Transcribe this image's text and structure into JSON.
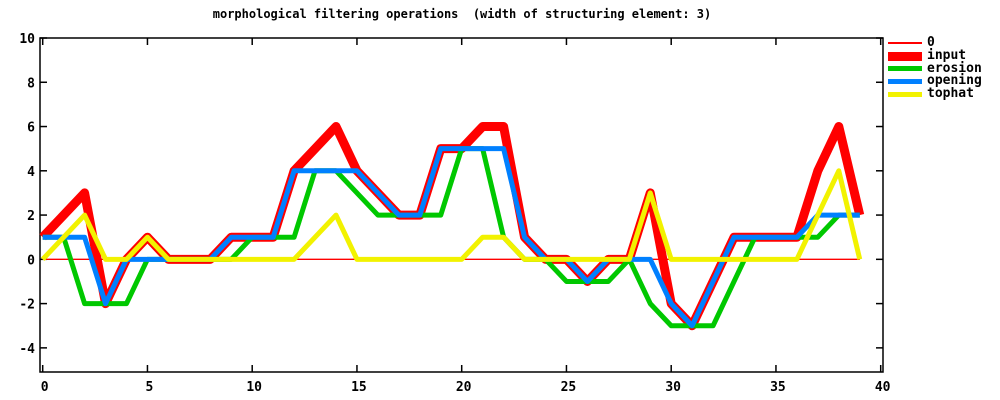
{
  "title": "morphological filtering operations  (width of structuring element: 3)",
  "legend": [
    {
      "label": "0",
      "color": "#ff0000",
      "line_width": 2
    },
    {
      "label": "input",
      "color": "#ff0000",
      "line_width": 9
    },
    {
      "label": "erosion",
      "color": "#00c800",
      "line_width": 5
    },
    {
      "label": "opening",
      "color": "#0080ff",
      "line_width": 5
    },
    {
      "label": "tophat",
      "color": "#f2f200",
      "line_width": 5
    }
  ],
  "axes": {
    "xticks": [
      0,
      5,
      10,
      15,
      20,
      25,
      30,
      35,
      40
    ],
    "yticks": [
      -4,
      -2,
      0,
      2,
      4,
      6,
      8,
      10
    ]
  },
  "chart_data": {
    "type": "line",
    "title": "morphological filtering operations  (width of structuring element: 3)",
    "xlabel": "",
    "ylabel": "",
    "xlim": [
      0,
      40
    ],
    "ylim": [
      -5,
      10
    ],
    "grid": false,
    "legend_position": "outside-right-top",
    "x": [
      0,
      1,
      2,
      3,
      4,
      5,
      6,
      7,
      8,
      9,
      10,
      11,
      12,
      13,
      14,
      15,
      16,
      17,
      18,
      19,
      20,
      21,
      22,
      23,
      24,
      25,
      26,
      27,
      28,
      29,
      30,
      31,
      32,
      33,
      34,
      35,
      36,
      37,
      38,
      39
    ],
    "series": [
      {
        "name": "0",
        "color": "#ff0000",
        "line_width": 1.4,
        "values": [
          0,
          0,
          0,
          0,
          0,
          0,
          0,
          0,
          0,
          0,
          0,
          0,
          0,
          0,
          0,
          0,
          0,
          0,
          0,
          0,
          0,
          0,
          0,
          0,
          0,
          0,
          0,
          0,
          0,
          0,
          0,
          0,
          0,
          0,
          0,
          0,
          0,
          0,
          0,
          0
        ]
      },
      {
        "name": "input",
        "color": "#ff0000",
        "line_width": 9,
        "values": [
          1,
          2,
          3,
          -2,
          0,
          1,
          0,
          0,
          0,
          1,
          1,
          1,
          4,
          5,
          6,
          4,
          3,
          2,
          2,
          5,
          5,
          6,
          6,
          1,
          0,
          0,
          -1,
          0,
          0,
          3,
          -2,
          -3,
          -1,
          1,
          1,
          1,
          1,
          4,
          6,
          2
        ]
      },
      {
        "name": "erosion",
        "color": "#00c800",
        "line_width": 5,
        "values": [
          1,
          1,
          -2,
          -2,
          -2,
          0,
          0,
          0,
          0,
          0,
          1,
          1,
          1,
          4,
          4,
          3,
          2,
          2,
          2,
          2,
          5,
          5,
          1,
          0,
          0,
          -1,
          -1,
          -1,
          0,
          -2,
          -3,
          -3,
          -3,
          -1,
          1,
          1,
          1,
          1,
          2,
          2
        ]
      },
      {
        "name": "opening",
        "color": "#0080ff",
        "line_width": 5,
        "values": [
          1,
          1,
          1,
          -2,
          0,
          0,
          0,
          0,
          0,
          1,
          1,
          1,
          4,
          4,
          4,
          4,
          3,
          2,
          2,
          5,
          5,
          5,
          5,
          1,
          0,
          0,
          -1,
          0,
          0,
          0,
          -2,
          -3,
          -1,
          1,
          1,
          1,
          1,
          2,
          2,
          2
        ]
      },
      {
        "name": "tophat",
        "color": "#f2f200",
        "line_width": 5,
        "values": [
          0,
          1,
          2,
          0,
          0,
          1,
          0,
          0,
          0,
          0,
          0,
          0,
          0,
          1,
          2,
          0,
          0,
          0,
          0,
          0,
          0,
          1,
          1,
          0,
          0,
          0,
          0,
          0,
          0,
          3,
          0,
          0,
          0,
          0,
          0,
          0,
          0,
          2,
          4,
          0
        ]
      }
    ]
  }
}
